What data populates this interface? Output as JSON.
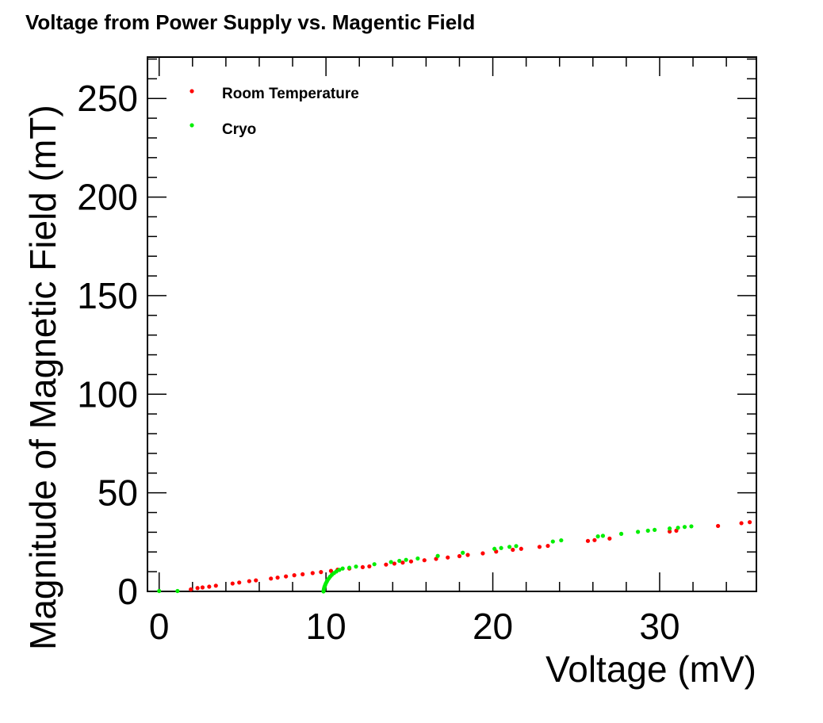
{
  "chart_data": {
    "type": "scatter",
    "title": "Voltage from Power Supply vs. Magentic Field",
    "xlabel": "Voltage (mV)",
    "ylabel": "Magnitude of Magnetic Field (mT)",
    "xlim": [
      -0.7,
      35.8
    ],
    "ylim": [
      0,
      271
    ],
    "xticks": [
      0,
      10,
      20,
      30
    ],
    "yticks": [
      0,
      50,
      100,
      150,
      200,
      250
    ],
    "legend_position": "top-left",
    "grid": false,
    "series": [
      {
        "name": "Room Temperature",
        "color": "#ff0000",
        "points": [
          [
            1.9,
            1.0
          ],
          [
            2.3,
            1.7
          ],
          [
            2.6,
            2.0
          ],
          [
            3.0,
            2.4
          ],
          [
            3.4,
            2.9
          ],
          [
            4.4,
            4.0
          ],
          [
            4.8,
            4.5
          ],
          [
            5.4,
            5.2
          ],
          [
            5.8,
            5.6
          ],
          [
            6.7,
            6.5
          ],
          [
            7.1,
            7.0
          ],
          [
            7.6,
            7.6
          ],
          [
            8.1,
            8.2
          ],
          [
            8.6,
            8.7
          ],
          [
            9.2,
            9.3
          ],
          [
            9.7,
            9.8
          ],
          [
            10.3,
            10.4
          ],
          [
            10.7,
            11.0
          ],
          [
            11.4,
            11.6
          ],
          [
            12.2,
            12.3
          ],
          [
            12.6,
            12.7
          ],
          [
            13.6,
            13.6
          ],
          [
            14.1,
            14.1
          ],
          [
            14.6,
            14.6
          ],
          [
            15.1,
            15.2
          ],
          [
            15.9,
            15.8
          ],
          [
            16.6,
            16.5
          ],
          [
            17.3,
            17.2
          ],
          [
            18.0,
            17.9
          ],
          [
            18.5,
            18.5
          ],
          [
            19.4,
            19.3
          ],
          [
            20.2,
            20.2
          ],
          [
            21.2,
            21.1
          ],
          [
            21.7,
            21.6
          ],
          [
            22.8,
            22.6
          ],
          [
            23.3,
            23.1
          ],
          [
            25.7,
            25.6
          ],
          [
            26.1,
            26.0
          ],
          [
            27.0,
            26.8
          ],
          [
            30.6,
            30.4
          ],
          [
            31.0,
            30.8
          ],
          [
            33.5,
            33.2
          ],
          [
            34.9,
            34.6
          ],
          [
            35.4,
            35.1
          ]
        ]
      },
      {
        "name": "Cryo",
        "color": "#00ee00",
        "points": [
          [
            0.0,
            0.2
          ],
          [
            1.1,
            0.2
          ],
          [
            9.85,
            0.0
          ],
          [
            9.86,
            0.6
          ],
          [
            9.88,
            1.3
          ],
          [
            9.9,
            2.0
          ],
          [
            9.93,
            2.7
          ],
          [
            9.96,
            3.4
          ],
          [
            10.0,
            4.2
          ],
          [
            10.05,
            5.0
          ],
          [
            10.1,
            5.8
          ],
          [
            10.17,
            6.6
          ],
          [
            10.25,
            7.5
          ],
          [
            10.35,
            8.4
          ],
          [
            10.48,
            9.3
          ],
          [
            10.62,
            10.1
          ],
          [
            10.8,
            10.9
          ],
          [
            11.0,
            11.6
          ],
          [
            11.4,
            12.0
          ],
          [
            11.8,
            12.6
          ],
          [
            12.9,
            13.8
          ],
          [
            13.9,
            14.9
          ],
          [
            14.4,
            15.5
          ],
          [
            14.8,
            16.0
          ],
          [
            15.5,
            16.7
          ],
          [
            16.7,
            18.0
          ],
          [
            18.2,
            19.6
          ],
          [
            20.1,
            21.6
          ],
          [
            20.5,
            22.0
          ],
          [
            21.0,
            22.6
          ],
          [
            21.4,
            23.0
          ],
          [
            23.6,
            25.3
          ],
          [
            24.1,
            25.9
          ],
          [
            26.3,
            27.9
          ],
          [
            26.6,
            28.2
          ],
          [
            27.7,
            29.2
          ],
          [
            28.7,
            30.2
          ],
          [
            29.3,
            30.8
          ],
          [
            29.7,
            31.2
          ],
          [
            30.6,
            31.9
          ],
          [
            31.1,
            32.3
          ],
          [
            31.5,
            32.7
          ],
          [
            31.9,
            33.0
          ]
        ]
      }
    ]
  }
}
